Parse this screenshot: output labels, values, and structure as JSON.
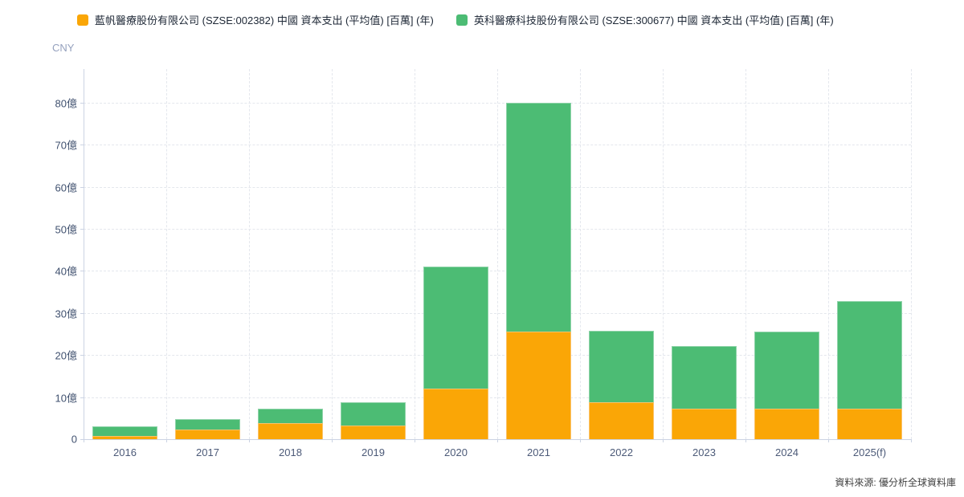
{
  "legend": {
    "items": [
      {
        "series_index": 0
      },
      {
        "series_index": 1
      }
    ]
  },
  "axis_unit_label": "CNY",
  "source_note": "資料來源: 優分析全球資料庫",
  "chart_data": {
    "type": "bar",
    "stacked": true,
    "title": "",
    "ylabel": "CNY",
    "xlabel": "",
    "unit": "億",
    "categories": [
      "2016",
      "2017",
      "2018",
      "2019",
      "2020",
      "2021",
      "2022",
      "2023",
      "2024",
      "2025(f)"
    ],
    "series": [
      {
        "name": "藍帆醫療股份有限公司 (SZSE:002382) 中國 資本支出 (平均值) [百萬] (年)",
        "color": "#faa606",
        "values": [
          0.7,
          2.2,
          3.9,
          3.3,
          12.0,
          25.5,
          8.8,
          7.3,
          7.3,
          7.2
        ]
      },
      {
        "name": "英科醫療科技股份有限公司 (SZSE:300677) 中國 資本支出 (平均值) [百萬] (年)",
        "color": "#4cbc74",
        "values": [
          2.3,
          2.6,
          3.4,
          5.4,
          29.0,
          54.5,
          17.0,
          14.8,
          18.2,
          25.7
        ]
      }
    ],
    "stack_totals": [
      3.0,
      4.8,
      7.3,
      8.7,
      41.0,
      80.0,
      25.8,
      22.1,
      25.5,
      32.9
    ],
    "yticks": [
      0,
      10,
      20,
      30,
      40,
      50,
      60,
      70,
      80
    ],
    "ytick_labels": [
      "0",
      "10億",
      "20億",
      "30億",
      "40億",
      "50億",
      "60億",
      "70億",
      "80億"
    ],
    "ylim": [
      0,
      88
    ],
    "grid": true,
    "legend_position": "top"
  }
}
